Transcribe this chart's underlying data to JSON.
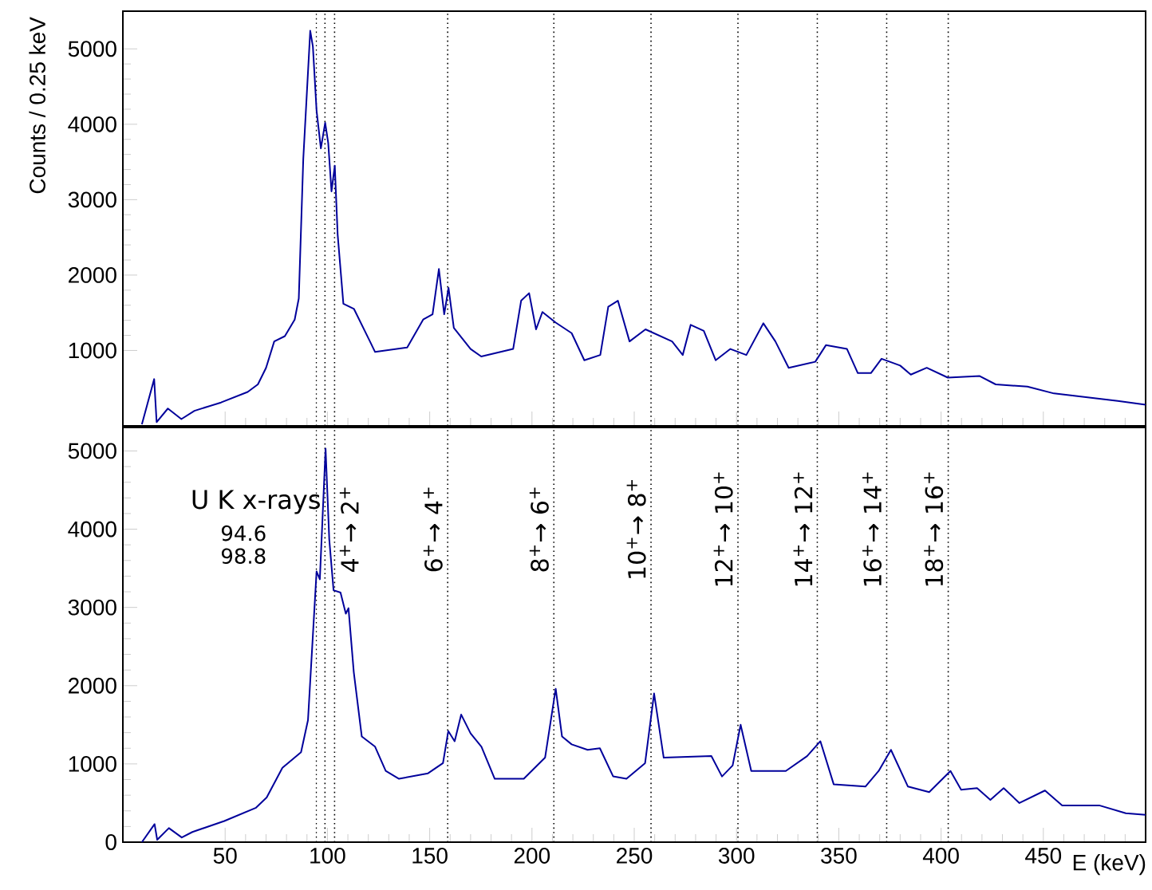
{
  "chart_data": [
    {
      "type": "line",
      "ylabel": "Counts / 0.25 keV",
      "xlim": [
        0,
        500
      ],
      "ylim": [
        0,
        5500
      ],
      "xticks": [
        50,
        100,
        150,
        200,
        250,
        300,
        350,
        400,
        450,
        {
          "value": 500,
          "label": null
        }
      ],
      "yticks": [
        1000,
        2000,
        3000,
        4000,
        5000
      ],
      "tick_labels": "y",
      "marker": "none",
      "line_style": "solid",
      "ref_lines": [
        {
          "axis": "x",
          "value": 94.6,
          "color": "#000000",
          "line_style": "dotted"
        },
        {
          "axis": "x",
          "value": 98.8,
          "color": "#000000",
          "line_style": "dotted"
        },
        {
          "axis": "x",
          "value": 103.5,
          "color": "#000000",
          "line_style": "dotted"
        },
        {
          "axis": "x",
          "value": 158.8,
          "color": "#000000",
          "line_style": "dotted"
        },
        {
          "axis": "x",
          "value": 210.7,
          "color": "#000000",
          "line_style": "dotted"
        },
        {
          "axis": "x",
          "value": 258.2,
          "color": "#000000",
          "line_style": "dotted"
        },
        {
          "axis": "x",
          "value": 300.7,
          "color": "#000000",
          "line_style": "dotted"
        },
        {
          "axis": "x",
          "value": 339.5,
          "color": "#000000",
          "line_style": "dotted"
        },
        {
          "axis": "x",
          "value": 373.4,
          "color": "#000000",
          "line_style": "dotted"
        },
        {
          "axis": "x",
          "value": 403.5,
          "color": "#000000",
          "line_style": "dotted"
        }
      ],
      "series": [
        {
          "color": "#00009b",
          "x": [
            9.3,
            15.3,
            16.5,
            22,
            28.6,
            35,
            48,
            61,
            66,
            70,
            74,
            79.2,
            84,
            86,
            88.2,
            91.6,
            92.9,
            94.7,
            96.8,
            98.9,
            100.4,
            102,
            103.6,
            105,
            107.8,
            113,
            120.8,
            123.3,
            139,
            146.8,
            151.4,
            154.5,
            157.1,
            159.2,
            161.8,
            170,
            175.2,
            190.8,
            194.7,
            198.6,
            202,
            205.1,
            211.6,
            219.4,
            225.6,
            233.4,
            237.3,
            242,
            247.7,
            255.5,
            268.5,
            273.7,
            277.6,
            284,
            289.8,
            297,
            304.8,
            313.1,
            319,
            325.5,
            338.5,
            343.7,
            354,
            359.3,
            365.7,
            370.9,
            380,
            385.2,
            393,
            403.3,
            418.9,
            426.7,
            442.2,
            455.2,
            470.8,
            486.4,
            500
          ],
          "values": [
            20,
            620,
            50,
            230,
            90,
            200,
            310,
            450,
            550,
            770,
            1120,
            1190,
            1410,
            1690,
            3540,
            5240,
            5030,
            4180,
            3680,
            4020,
            3750,
            3110,
            3450,
            2540,
            1620,
            1550,
            1120,
            980,
            1040,
            1410,
            1480,
            2080,
            1480,
            1830,
            1300,
            1020,
            920,
            1020,
            1660,
            1760,
            1280,
            1510,
            1370,
            1230,
            870,
            940,
            1580,
            1660,
            1120,
            1280,
            1120,
            940,
            1340,
            1260,
            870,
            1020,
            940,
            1360,
            1120,
            770,
            850,
            1070,
            1020,
            700,
            700,
            890,
            800,
            680,
            770,
            640,
            660,
            550,
            520,
            430,
            380,
            330,
            280
          ]
        }
      ]
    },
    {
      "type": "line",
      "xlabel": "E (keV)",
      "xlim": [
        0,
        500
      ],
      "ylim": [
        0,
        5300
      ],
      "xticks": [
        50,
        100,
        150,
        200,
        250,
        300,
        350,
        400,
        450,
        {
          "value": 500,
          "label": null
        }
      ],
      "yticks": [
        0,
        1000,
        2000,
        3000,
        4000,
        5000
      ],
      "marker": "none",
      "line_style": "solid",
      "annotations": [
        "U K x-rays",
        "94.6",
        "98.8"
      ],
      "ref_lines": [
        {
          "axis": "x",
          "value": 94.6,
          "color": "#000000",
          "line_style": "dotted"
        },
        {
          "axis": "x",
          "value": 98.8,
          "color": "#000000",
          "line_style": "dotted"
        },
        {
          "axis": "x",
          "value": 103.5,
          "color": "#000000",
          "line_style": "dotted",
          "label": "4$^{+}$→ 2$^{+}$"
        },
        {
          "axis": "x",
          "value": 158.8,
          "color": "#000000",
          "line_style": "dotted",
          "label": "6$^{+}$→ 4$^{+}$"
        },
        {
          "axis": "x",
          "value": 210.7,
          "color": "#000000",
          "line_style": "dotted",
          "label": "8$^{+}$→ 6$^{+}$"
        },
        {
          "axis": "x",
          "value": 258.2,
          "color": "#000000",
          "line_style": "dotted",
          "label": "10$^{+}$→ 8$^{+}$"
        },
        {
          "axis": "x",
          "value": 300.7,
          "color": "#000000",
          "line_style": "dotted",
          "label": "12$^{+}$→ 10$^{+}$"
        },
        {
          "axis": "x",
          "value": 339.5,
          "color": "#000000",
          "line_style": "dotted",
          "label": "14$^{+}$→ 12$^{+}$"
        },
        {
          "axis": "x",
          "value": 373.4,
          "color": "#000000",
          "line_style": "dotted",
          "label": "16$^{+}$→ 14$^{+}$"
        },
        {
          "axis": "x",
          "value": 403.5,
          "color": "#000000",
          "line_style": "dotted",
          "label": "18$^{+}$→ 16$^{+}$"
        }
      ],
      "series": [
        {
          "color": "#00009b",
          "x": [
            9.3,
            15.5,
            16.8,
            22.5,
            28.8,
            34,
            49.6,
            65.1,
            70.3,
            78,
            87.1,
            90.5,
            94.7,
            96.3,
            99.1,
            100.9,
            103,
            106.4,
            109,
            110.3,
            112.9,
            116.8,
            123.3,
            128.5,
            135,
            149.2,
            156.5,
            159.1,
            162.2,
            165.4,
            170,
            175.3,
            181.8,
            196,
            206.4,
            211.6,
            214.7,
            219.4,
            227.2,
            233.2,
            239.7,
            246.2,
            255.3,
            259.7,
            264.4,
            287.7,
            292.9,
            298.1,
            302,
            307.2,
            324.1,
            334.5,
            341,
            347.5,
            363,
            369.5,
            375.5,
            383.8,
            394.2,
            404.6,
            409.8,
            417.6,
            424.1,
            430.6,
            438.3,
            450.8,
            459.2,
            477.3,
            490.3,
            500
          ],
          "values": [
            0,
            230,
            30,
            180,
            60,
            130,
            270,
            440,
            570,
            950,
            1150,
            1560,
            3460,
            3360,
            5030,
            3870,
            3220,
            3190,
            2920,
            2990,
            2170,
            1350,
            1220,
            910,
            810,
            880,
            1010,
            1420,
            1290,
            1630,
            1390,
            1220,
            810,
            810,
            1080,
            1960,
            1350,
            1250,
            1180,
            1200,
            840,
            810,
            1010,
            1900,
            1080,
            1100,
            840,
            980,
            1500,
            910,
            910,
            1100,
            1290,
            740,
            710,
            910,
            1180,
            710,
            640,
            910,
            670,
            690,
            540,
            690,
            500,
            660,
            470,
            470,
            370,
            350
          ]
        }
      ]
    }
  ]
}
